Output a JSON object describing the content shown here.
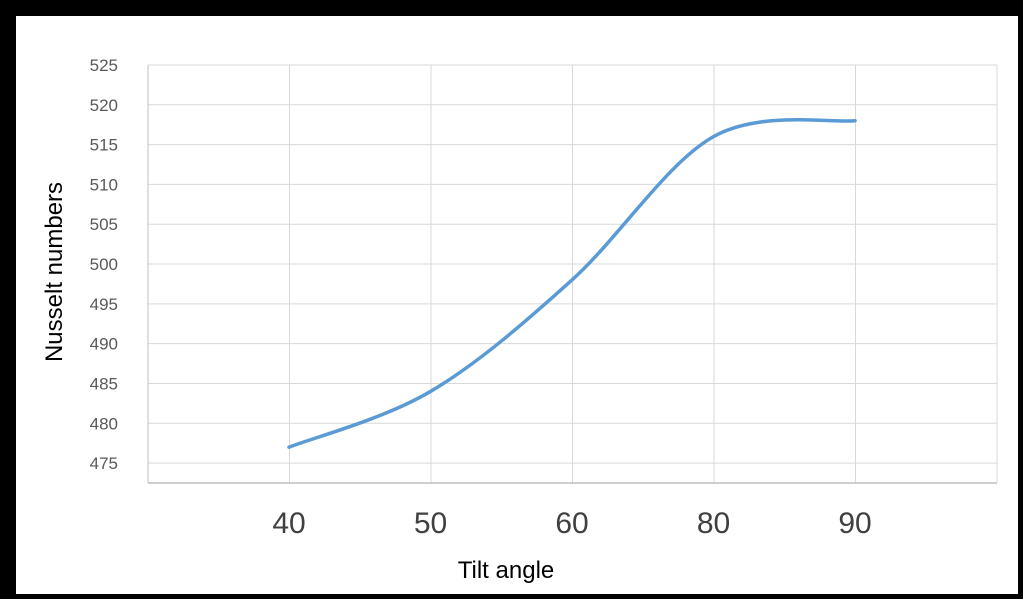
{
  "chart_data": {
    "type": "line",
    "title": "",
    "xlabel": "Tilt angle",
    "ylabel": "Nusselt numbers",
    "categories": [
      "40",
      "50",
      "60",
      "80",
      "90"
    ],
    "x": [
      40,
      50,
      60,
      80,
      90
    ],
    "series": [
      {
        "values": [
          477,
          484,
          498,
          516,
          518
        ]
      }
    ],
    "yticks": [
      "525",
      "520",
      "515",
      "510",
      "505",
      "500",
      "495",
      "490",
      "485",
      "480",
      "475"
    ],
    "ylim": [
      472.5,
      525
    ],
    "grid": true,
    "legend": "none",
    "colors": {
      "line": "#5b9bd5",
      "grid": "#d9d9d9",
      "axis": "#bfbfbf",
      "frame": "#000000",
      "ytick_text": "#595959",
      "xtick_text": "#404040",
      "label_text": "#000000"
    }
  }
}
